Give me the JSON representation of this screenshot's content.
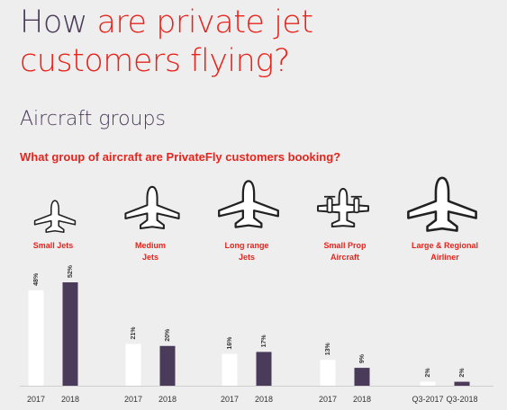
{
  "headline": {
    "part1": "How ",
    "part2": "are private jet",
    "part3": "customers flying?"
  },
  "section_title": "Aircraft groups",
  "question": "What group of aircraft are PrivateFly customers booking?",
  "colors": {
    "accent": "#e8231c",
    "purple": "#4b3b5a",
    "bar_first": "#ffffff",
    "bar_second": "#4b3b5a",
    "background": "#efeeee"
  },
  "chart_data": {
    "type": "bar",
    "categories": [
      {
        "label_lines": [
          "Small Jets"
        ],
        "icon": "small-jet-icon",
        "periods": [
          "2017",
          "2018"
        ],
        "values": [
          48,
          52
        ],
        "value_labels": [
          "48%",
          "52%"
        ]
      },
      {
        "label_lines": [
          "Medium",
          "Jets"
        ],
        "icon": "medium-jet-icon",
        "periods": [
          "2017",
          "2018"
        ],
        "values": [
          21,
          20
        ],
        "value_labels": [
          "21%",
          "20%"
        ]
      },
      {
        "label_lines": [
          "Long range",
          "Jets"
        ],
        "icon": "long-range-jet-icon",
        "periods": [
          "2017",
          "2018"
        ],
        "values": [
          16,
          17
        ],
        "value_labels": [
          "16%",
          "17%"
        ]
      },
      {
        "label_lines": [
          "Small Prop",
          "Aircraft"
        ],
        "icon": "small-prop-aircraft-icon",
        "periods": [
          "2017",
          "2018"
        ],
        "values": [
          13,
          9
        ],
        "value_labels": [
          "13%",
          "9%"
        ]
      },
      {
        "label_lines": [
          "Large & Regional",
          "Airliner"
        ],
        "icon": "airliner-icon",
        "periods": [
          "Q3-2017",
          "Q3-2018"
        ],
        "values": [
          2,
          2
        ],
        "value_labels": [
          "2%",
          "2%"
        ]
      }
    ],
    "ylim": [
      0,
      52
    ],
    "grid": false
  }
}
